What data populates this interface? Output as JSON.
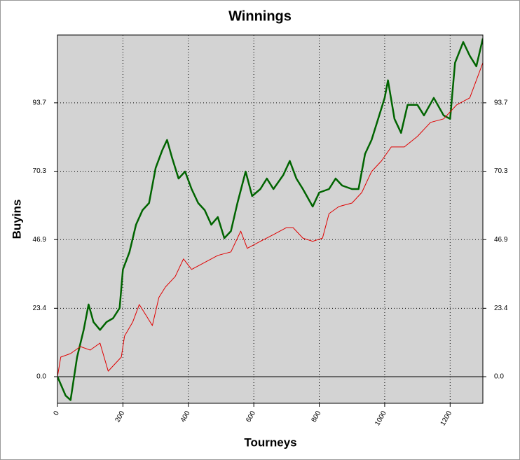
{
  "chart_data": {
    "type": "line",
    "title": "Winnings",
    "x_label": "Tourneys",
    "y_label": "Buyins",
    "xlim": [
      0,
      1300
    ],
    "ylim": [
      -9.1,
      116.9
    ],
    "xticks": [
      0,
      200,
      400,
      600,
      800,
      1000,
      1200
    ],
    "yticks": [
      {
        "value": 0,
        "label": "0.0"
      },
      23.4,
      46.9,
      70.3,
      93.7
    ],
    "grid": true,
    "background": "#d3d3d3",
    "series": [
      {
        "color": "#006400",
        "width": 2.5,
        "x": [
          0,
          25,
          40,
          60,
          80,
          95,
          110,
          130,
          150,
          170,
          190,
          200,
          220,
          240,
          260,
          280,
          300,
          320,
          335,
          350,
          370,
          390,
          410,
          430,
          450,
          470,
          490,
          510,
          530,
          550,
          575,
          595,
          620,
          640,
          660,
          690,
          710,
          730,
          750,
          780,
          800,
          830,
          850,
          870,
          900,
          920,
          940,
          960,
          980,
          1000,
          1010,
          1030,
          1050,
          1070,
          1100,
          1120,
          1150,
          1180,
          1200,
          1215,
          1240,
          1260,
          1280,
          1300
        ],
        "values": [
          0,
          -6.5,
          -8,
          6.7,
          16,
          24.7,
          18.7,
          16,
          18.7,
          20,
          23.5,
          36.7,
          42.6,
          52,
          57,
          59.4,
          71.4,
          77.4,
          81,
          75,
          67.8,
          70.2,
          64.2,
          59.4,
          57,
          52,
          54.6,
          47.4,
          49.8,
          59.4,
          70.2,
          61.8,
          64.2,
          67.8,
          64.2,
          69,
          73.8,
          67.8,
          64.2,
          58.2,
          63,
          64.2,
          67.8,
          65.4,
          64.2,
          64.2,
          76.2,
          81,
          88.2,
          95.4,
          101.4,
          88.2,
          83.4,
          93,
          93,
          89.4,
          95.4,
          89.4,
          88.2,
          107.4,
          114.5,
          109.8,
          106.2,
          115.7
        ]
      },
      {
        "color": "#e00000",
        "width": 1,
        "x": [
          0,
          10,
          40,
          70,
          100,
          130,
          155,
          175,
          195,
          205,
          230,
          250,
          270,
          290,
          310,
          330,
          360,
          385,
          410,
          450,
          490,
          530,
          560,
          580,
          620,
          660,
          700,
          720,
          750,
          780,
          810,
          830,
          860,
          900,
          930,
          960,
          990,
          1020,
          1060,
          1100,
          1140,
          1180,
          1220,
          1260,
          1280,
          1300
        ],
        "values": [
          0,
          6.7,
          7.9,
          10.3,
          9.1,
          11.5,
          1.9,
          4.3,
          6.7,
          13.9,
          18.7,
          24.7,
          21.1,
          17.5,
          27.1,
          30.7,
          34.3,
          40.3,
          36.7,
          39.1,
          41.5,
          42.7,
          49.8,
          43.9,
          46.3,
          48.6,
          51,
          51,
          47.4,
          46.3,
          47.4,
          55.8,
          58.2,
          59.4,
          63,
          70.2,
          73.8,
          78.6,
          78.6,
          82.2,
          87,
          88.2,
          93,
          95.4,
          101.4,
          107.4
        ]
      }
    ]
  }
}
